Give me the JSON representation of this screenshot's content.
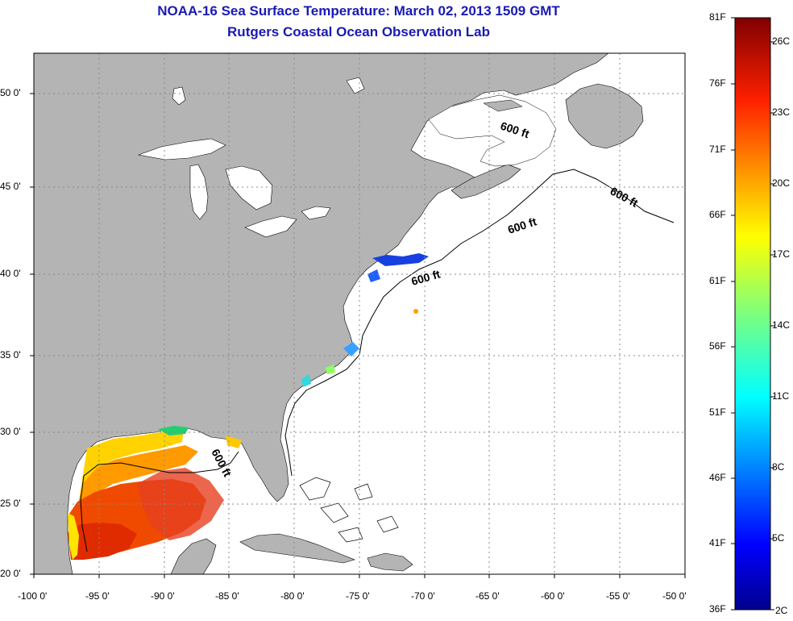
{
  "title": "NOAA-16 Sea Surface Temperature:  March 02, 2013 1509 GMT",
  "subtitle": "Rutgers Coastal Ocean Observation Lab",
  "lon_ticks": [
    "-100 0'",
    "-95 0'",
    "-90 0'",
    "-85 0'",
    "-80 0'",
    "-75 0'",
    "-70 0'",
    "-65 0'",
    "-60 0'",
    "-55 0'",
    "-50 0'"
  ],
  "lat_ticks": [
    "50 0'",
    "45 0'",
    "40 0'",
    "35 0'",
    "30 0'",
    "25 0'",
    "20 0'"
  ],
  "contour_label": "600 ft",
  "colorbar": {
    "fahrenheit": [
      "81F",
      "76F",
      "71F",
      "66F",
      "61F",
      "56F",
      "51F",
      "46F",
      "41F",
      "36F"
    ],
    "celsius": [
      "26C",
      "23C",
      "20C",
      "17C",
      "14C",
      "11C",
      "8C",
      "5C",
      "2C"
    ]
  },
  "colors": {
    "land": "#b4b4b4",
    "water": "#ffffff",
    "title": "#1a1ab4",
    "grid": "#888888"
  }
}
